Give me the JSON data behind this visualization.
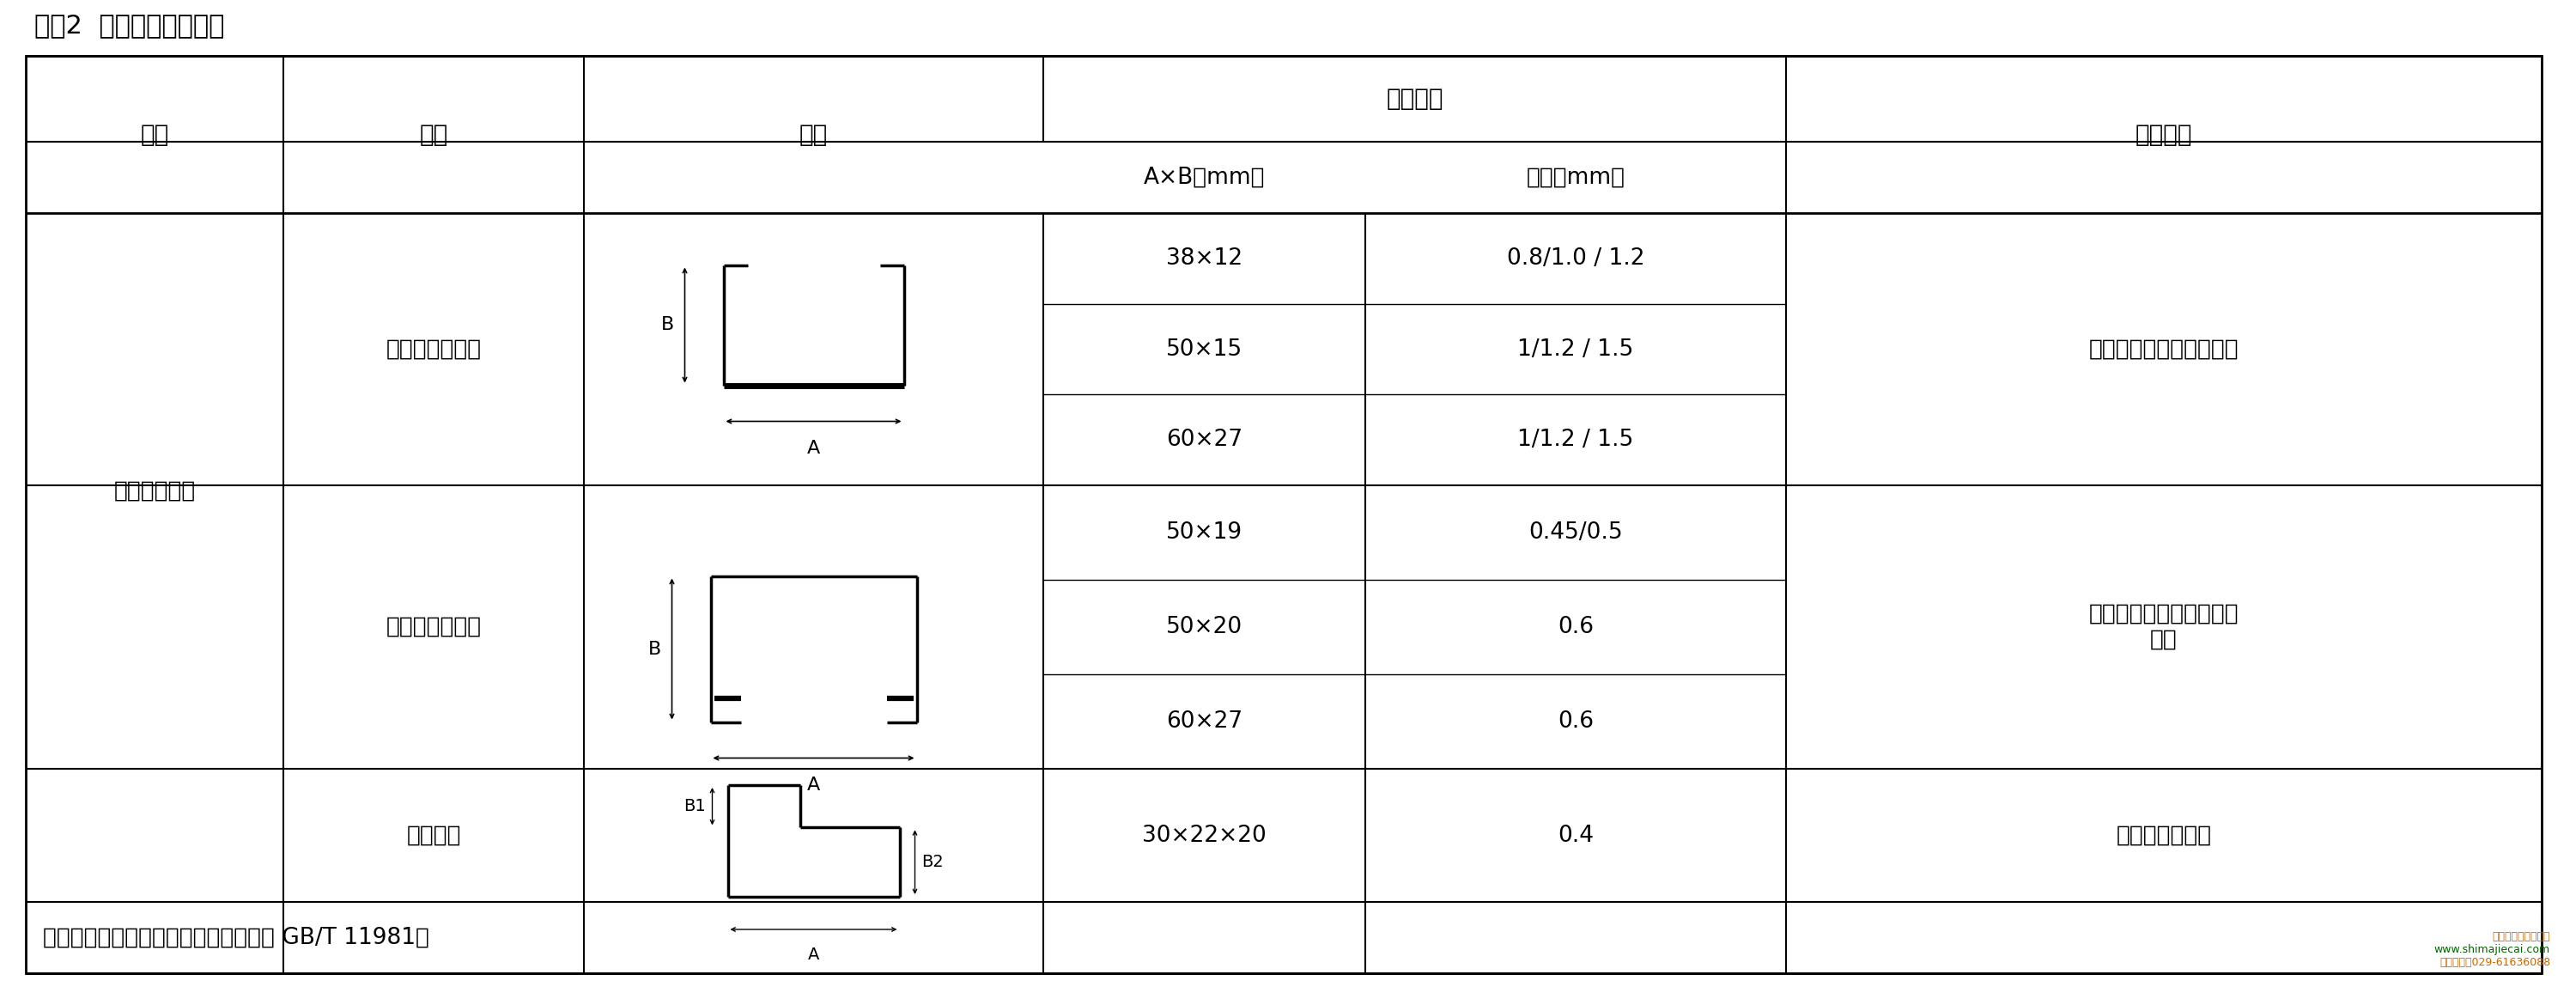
{
  "title": "续表2  轻钢龙骨产品规格",
  "headers": {
    "col1": "系列",
    "col2": "名称",
    "col3": "断面",
    "col4_main": "实际尺寸",
    "col4a": "A×B（mm）",
    "col4b": "厚度（mm）",
    "col5": "应用范围"
  },
  "row0_specs": [
    {
      "axb": "38×12",
      "thickness": "0.8/1.0 / 1.2"
    },
    {
      "axb": "50×15",
      "thickness": "1/1.2 / 1.5"
    },
    {
      "axb": "60×27",
      "thickness": "1/1.2 / 1.5"
    }
  ],
  "row1_specs": [
    {
      "axb": "50×19",
      "thickness": "0.45/0.5"
    },
    {
      "axb": "50×20",
      "thickness": "0.6"
    },
    {
      "axb": "60×27",
      "thickness": "0.6"
    }
  ],
  "row2_specs": [
    {
      "axb": "30×22×20",
      "thickness": "0.4"
    }
  ],
  "series_label": "标准吊顶系列",
  "name0": "主（承载）龙骨",
  "name1": "次（覆面）龙骨",
  "name2": "收边龙骨",
  "app0": "吊顶骨架中主要受力构件",
  "app1a": "吊顶骨架中固定饰面板的",
  "app1b": "构件",
  "app2": "吊顶次龙骨收边",
  "note": "备注：产品执行标准（建筑用轻钢龙骨 GB/T 11981）",
  "bg_color": "#ffffff",
  "lc": "#000000",
  "fs_title": 22,
  "fs_header": 20,
  "fs_cell": 19,
  "fs_shape": 16
}
